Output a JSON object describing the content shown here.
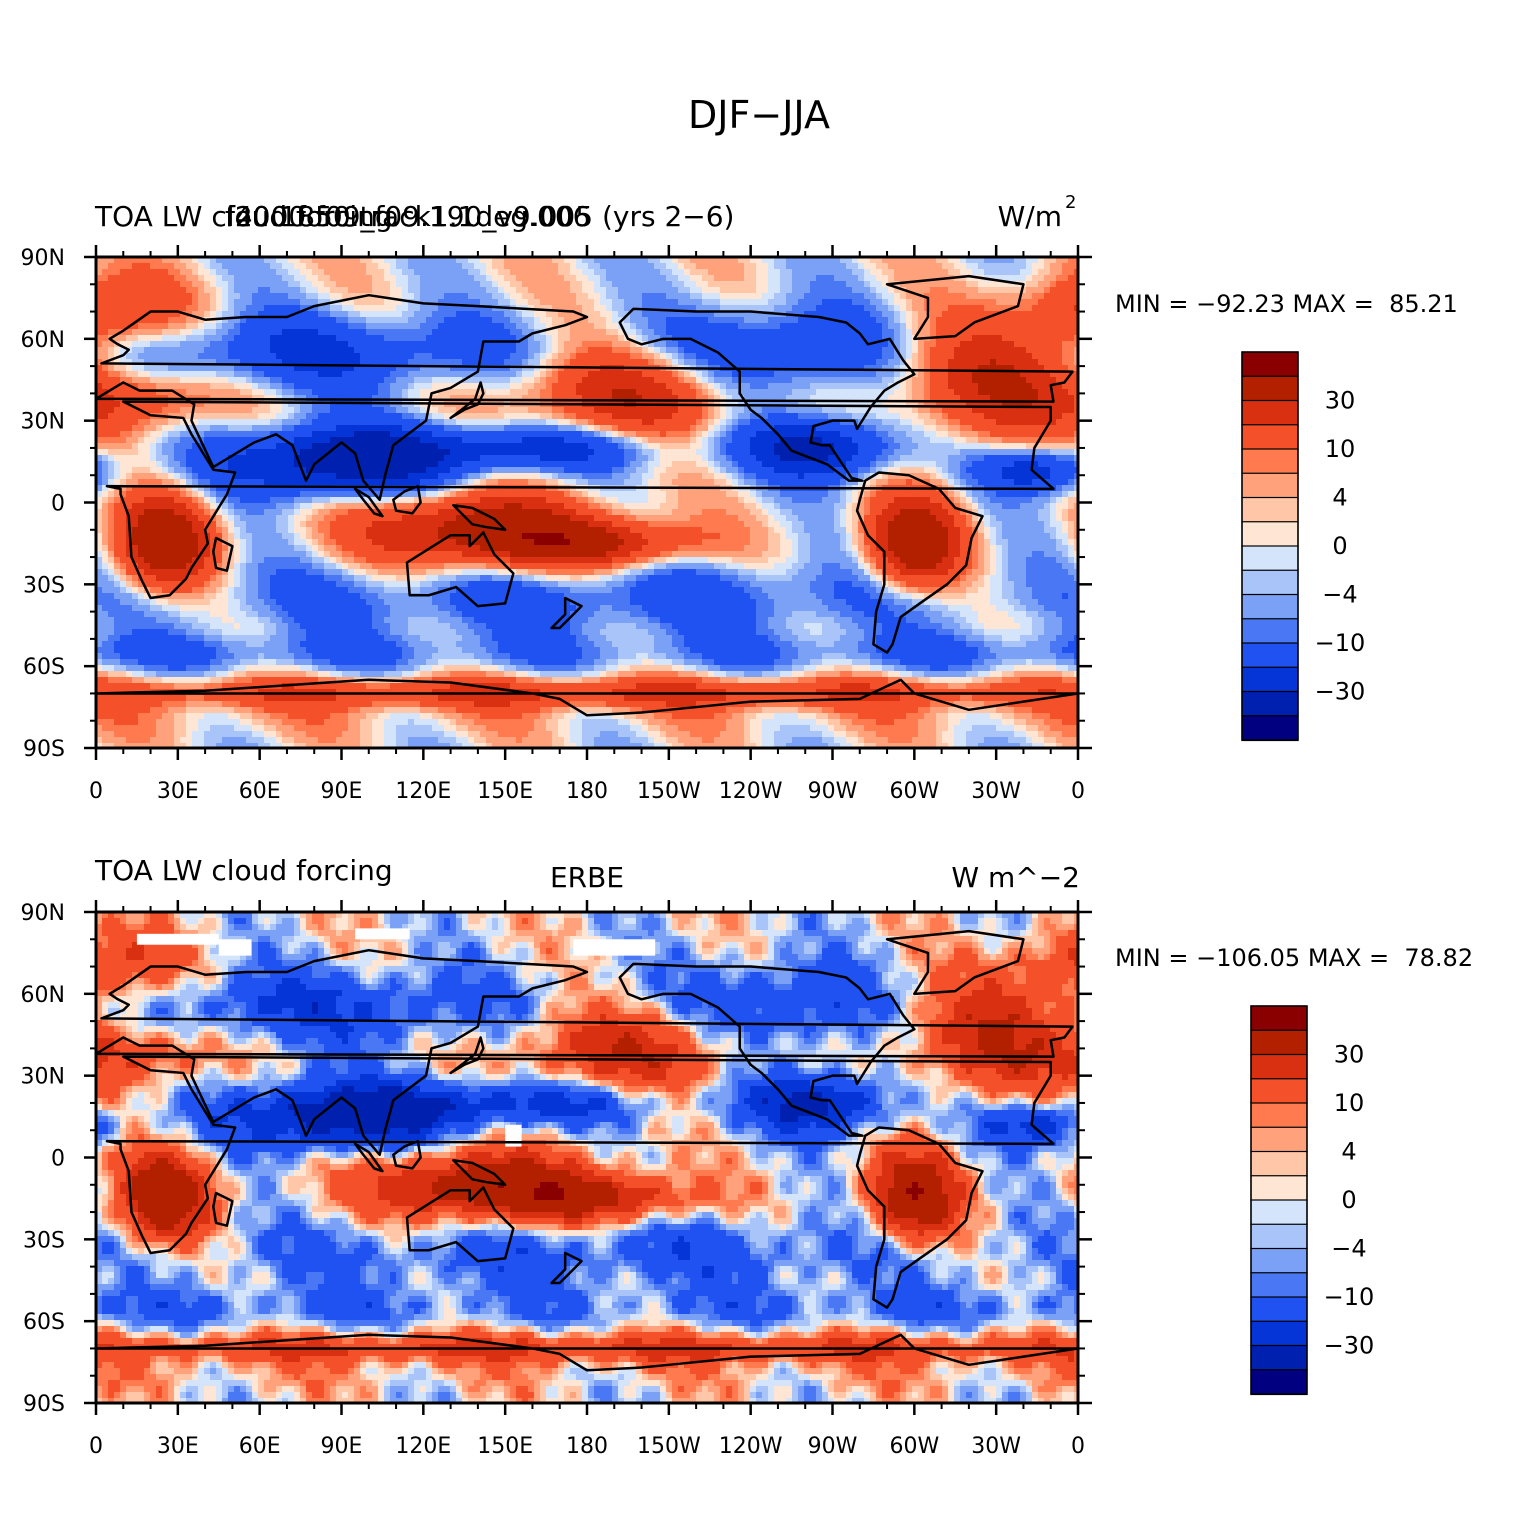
{
  "main_title": "DJF−JJA",
  "chart_data": [
    {
      "type": "heatmap",
      "left_title": "TOA LW cloud forcing",
      "center_title": "f40.1850.track1.1deg.006",
      "center_title_line2": "f2000.f09_f09.190_v9.005 (yrs 2−6)",
      "units": "W/m",
      "units_sup": "2",
      "stats": "MIN = −92.23 MAX =  85.21",
      "min": -92.23,
      "max": 85.21,
      "x_ticks": [
        "0",
        "30E",
        "60E",
        "90E",
        "120E",
        "150E",
        "180",
        "150W",
        "120W",
        "90W",
        "60W",
        "30W",
        "0"
      ],
      "y_ticks": [
        "90N",
        "60N",
        "30N",
        "0",
        "30S",
        "60S",
        "90S"
      ],
      "xlim": [
        0,
        360
      ],
      "ylim": [
        -90,
        90
      ],
      "colorbar_labels": [
        "30",
        "10",
        "4",
        "0",
        "−4",
        "−10",
        "−30"
      ]
    },
    {
      "type": "heatmap",
      "left_title": "TOA LW cloud forcing",
      "center_title": "ERBE",
      "units": "W m^−2",
      "stats": "MIN = −106.05 MAX =  78.82",
      "min": -106.05,
      "max": 78.82,
      "x_ticks": [
        "0",
        "30E",
        "60E",
        "90E",
        "120E",
        "150E",
        "180",
        "150W",
        "120W",
        "90W",
        "60W",
        "30W",
        "0"
      ],
      "y_ticks": [
        "90N",
        "60N",
        "30N",
        "0",
        "30S",
        "60S",
        "90S"
      ],
      "xlim": [
        0,
        360
      ],
      "ylim": [
        -90,
        90
      ],
      "colorbar_labels": [
        "30",
        "10",
        "4",
        "0",
        "−4",
        "−10",
        "−30"
      ]
    }
  ],
  "palette": [
    "#000080",
    "#0020b0",
    "#0535d6",
    "#1f52f0",
    "#4a78f4",
    "#7ba1f7",
    "#a9c4f9",
    "#d4e4fb",
    "#ffe6d4",
    "#ffc6a8",
    "#ffa27c",
    "#ff7a4e",
    "#f4502a",
    "#d83010",
    "#b32000",
    "#8a0000"
  ]
}
